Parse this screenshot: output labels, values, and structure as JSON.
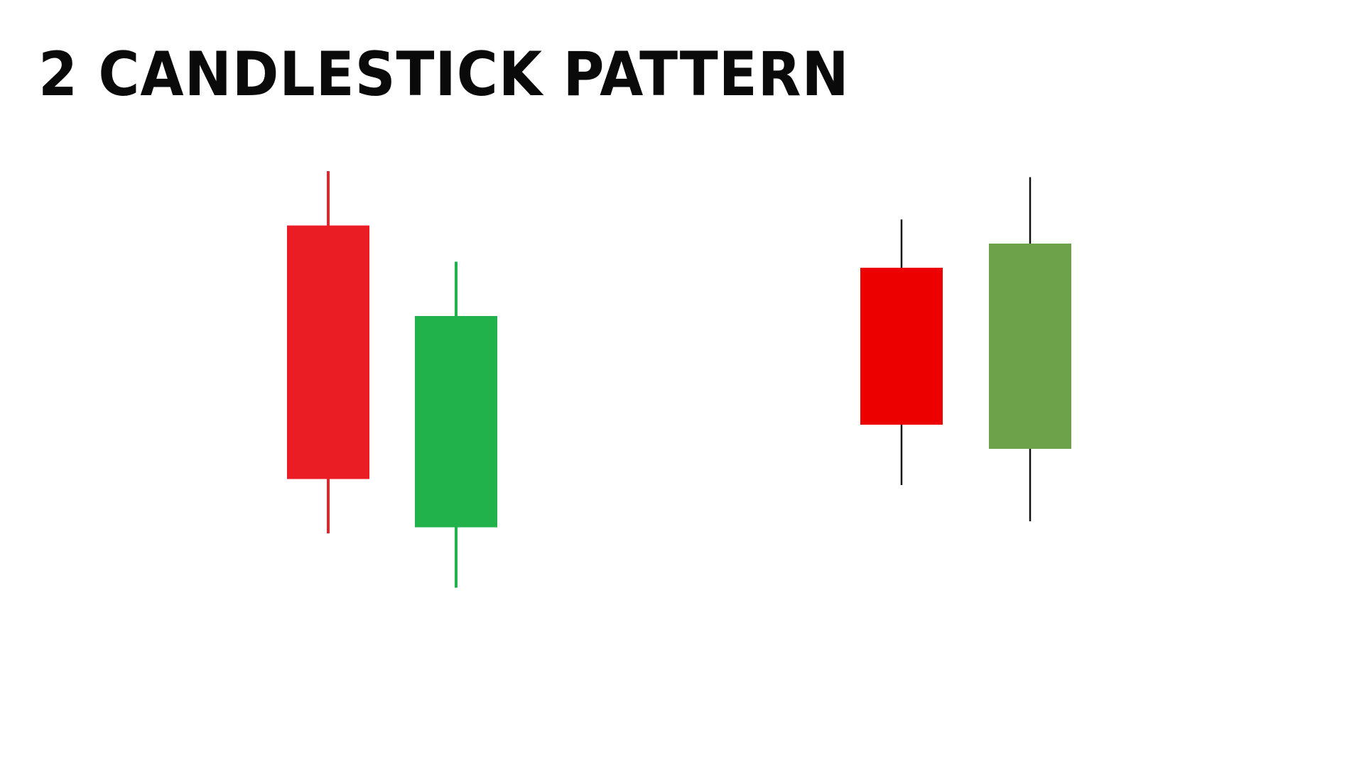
{
  "title": "2 CANDLESTICK PATTERN",
  "chart_data": {
    "type": "candlestick",
    "groups": [
      {
        "candles": [
          {
            "direction": "bearish",
            "color": "#ea1c24",
            "wick_color": "#d42a30",
            "open": 8.5,
            "close": 4.3,
            "high": 9.4,
            "low": 3.4
          },
          {
            "direction": "bullish",
            "color": "#21b24b",
            "wick_color": "#21b24b",
            "open": 3.5,
            "close": 7.0,
            "high": 7.9,
            "low": 2.5
          }
        ]
      },
      {
        "candles": [
          {
            "direction": "bearish",
            "color": "#ec0000",
            "wick_color": "#111111",
            "open": 7.8,
            "close": 5.2,
            "high": 8.6,
            "low": 4.2
          },
          {
            "direction": "bullish",
            "color": "#6ea24a",
            "wick_color": "#111111",
            "open": 4.8,
            "close": 8.2,
            "high": 9.3,
            "low": 3.6
          }
        ]
      }
    ]
  }
}
